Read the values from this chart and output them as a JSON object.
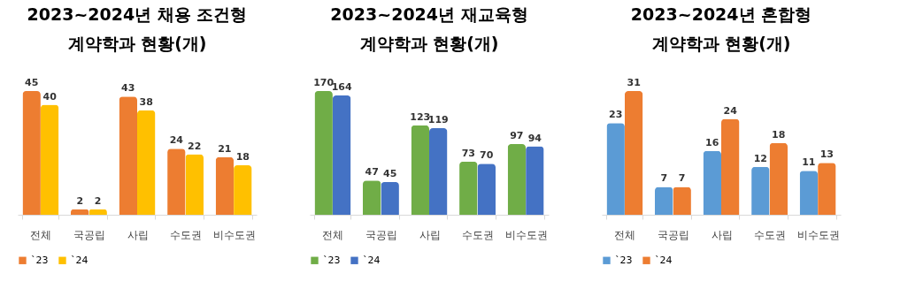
{
  "chart_data": [
    {
      "type": "bar",
      "title": "2023~2024년 채용 조건형",
      "subtitle": "계약학과 현황(개)",
      "categories": [
        "전체",
        "국공립",
        "사립",
        "수도권",
        "비수도권"
      ],
      "series": [
        {
          "name": "`23",
          "color": "#ed7d31",
          "values": [
            45,
            2,
            43,
            24,
            21
          ]
        },
        {
          "name": "`24",
          "color": "#ffc000",
          "values": [
            40,
            2,
            38,
            22,
            18
          ]
        }
      ],
      "data_labels": true,
      "legend": "bottom",
      "tick_labels": "x",
      "ylim": [
        0,
        45
      ]
    },
    {
      "type": "bar",
      "title": "2023~2024년 재교육형",
      "subtitle": "계약학과 현황(개)",
      "categories": [
        "전체",
        "국공립",
        "사립",
        "수도권",
        "비수도권"
      ],
      "series": [
        {
          "name": "`23",
          "color": "#70ad47",
          "values": [
            170,
            47,
            123,
            73,
            97
          ]
        },
        {
          "name": "`24",
          "color": "#4472c4",
          "values": [
            164,
            45,
            119,
            70,
            94
          ]
        }
      ],
      "data_labels": true,
      "legend": "bottom",
      "tick_labels": "x",
      "ylim": [
        0,
        170
      ]
    },
    {
      "type": "bar",
      "title": "2023~2024년 혼합형",
      "subtitle": "계약학과 현황(개)",
      "categories": [
        "전체",
        "국공립",
        "사립",
        "수도권",
        "비수도권"
      ],
      "series": [
        {
          "name": "`23",
          "color": "#5b9bd5",
          "values": [
            23,
            7,
            16,
            12,
            11
          ]
        },
        {
          "name": "`24",
          "color": "#ed7d31",
          "values": [
            31,
            7,
            24,
            18,
            13
          ]
        }
      ],
      "data_labels": true,
      "legend": "bottom",
      "tick_labels": "x",
      "ylim": [
        0,
        31
      ]
    }
  ]
}
